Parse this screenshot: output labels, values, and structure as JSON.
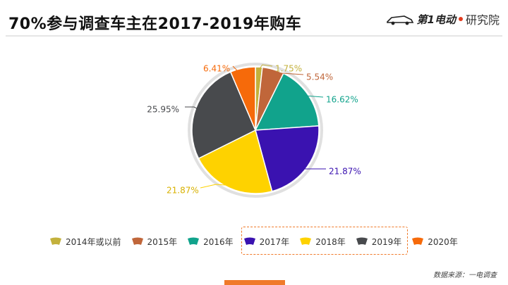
{
  "header": {
    "title": "70%参与调查车主在2017-2019年购车",
    "brand": {
      "name": "第1电动",
      "suffix": "研究院"
    }
  },
  "source": "数据来源：一电调查",
  "chart_data": {
    "type": "pie",
    "title": "70%参与调查车主在2017-2019年购车",
    "slices": [
      {
        "label": "2014年或以前",
        "value": 1.75,
        "display": "1.75%",
        "color": "#c3b13c"
      },
      {
        "label": "2015年",
        "value": 5.54,
        "display": "5.54%",
        "color": "#c0663a"
      },
      {
        "label": "2016年",
        "value": 16.62,
        "display": "16.62%",
        "color": "#11a38c"
      },
      {
        "label": "2017年",
        "value": 21.87,
        "display": "21.87%",
        "color": "#3a12b0"
      },
      {
        "label": "2018年",
        "value": 21.87,
        "display": "21.87%",
        "color": "#fed200"
      },
      {
        "label": "2019年",
        "value": 25.95,
        "display": "25.95%",
        "color": "#484a4d"
      },
      {
        "label": "2020年",
        "value": 6.41,
        "display": "6.41%",
        "color": "#f66a0a"
      }
    ],
    "highlighted": [
      "2017年",
      "2018年",
      "2019年"
    ],
    "legend_position": "bottom"
  }
}
